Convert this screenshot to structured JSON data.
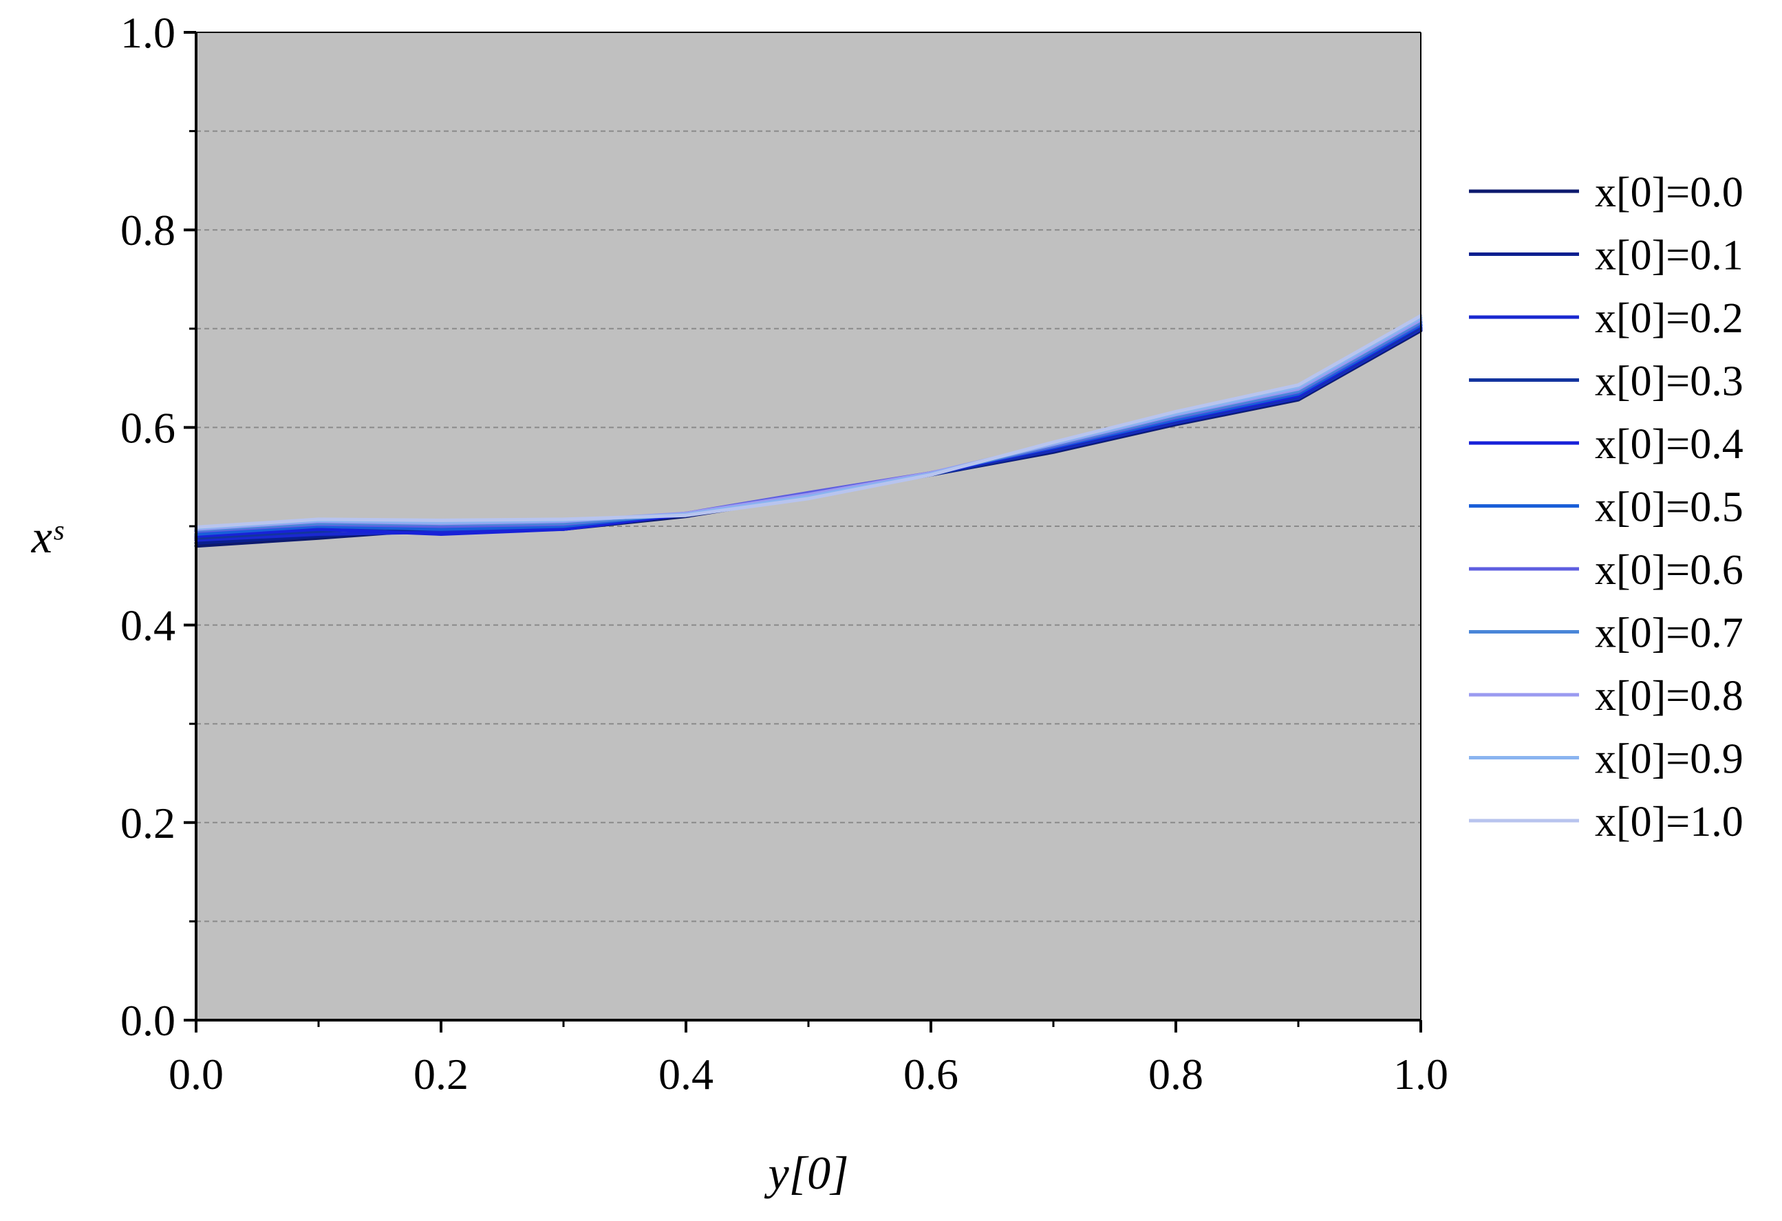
{
  "chart_data": {
    "type": "line",
    "title": "",
    "xlabel": "y[0]",
    "ylabel": "xˢ",
    "xlim": [
      0.0,
      1.0
    ],
    "ylim": [
      0.0,
      1.0
    ],
    "x_ticks": [
      "0.0",
      "0.2",
      "0.4",
      "0.6",
      "0.8",
      "1.0"
    ],
    "y_ticks": [
      "0.0",
      "0.2",
      "0.4",
      "0.6",
      "0.8",
      "1.0"
    ],
    "grid": "horizontal dashed",
    "legend_position": "right",
    "plot_background": "#c0c0c0",
    "x": [
      0.0,
      0.1,
      0.2,
      0.3,
      0.4,
      0.5,
      0.6,
      0.7,
      0.8,
      0.9,
      1.0
    ],
    "series": [
      {
        "name": "x[0]=0.0",
        "color": "#0d1a6e",
        "values": [
          0.48,
          0.488,
          0.497,
          0.497,
          0.51,
          0.53,
          0.552,
          0.575,
          0.603,
          0.628,
          0.698
        ]
      },
      {
        "name": "x[0]=0.1",
        "color": "#0a1f8f",
        "values": [
          0.483,
          0.49,
          0.498,
          0.5,
          0.511,
          0.531,
          0.552,
          0.576,
          0.604,
          0.629,
          0.699
        ]
      },
      {
        "name": "x[0]=0.2",
        "color": "#1a28d0",
        "values": [
          0.486,
          0.492,
          0.494,
          0.497,
          0.512,
          0.532,
          0.553,
          0.577,
          0.605,
          0.63,
          0.7
        ]
      },
      {
        "name": "x[0]=0.3",
        "color": "#13349e",
        "values": [
          0.488,
          0.495,
          0.5,
          0.505,
          0.511,
          0.53,
          0.552,
          0.578,
          0.606,
          0.631,
          0.701
        ]
      },
      {
        "name": "x[0]=0.4",
        "color": "#1822d8",
        "values": [
          0.49,
          0.497,
          0.492,
          0.497,
          0.512,
          0.533,
          0.553,
          0.579,
          0.607,
          0.632,
          0.703
        ]
      },
      {
        "name": "x[0]=0.5",
        "color": "#1a5fd8",
        "values": [
          0.492,
          0.5,
          0.497,
          0.5,
          0.513,
          0.532,
          0.554,
          0.58,
          0.608,
          0.634,
          0.704
        ]
      },
      {
        "name": "x[0]=0.6",
        "color": "#5e5ee0",
        "values": [
          0.495,
          0.502,
          0.5,
          0.502,
          0.513,
          0.534,
          0.554,
          0.581,
          0.61,
          0.636,
          0.706
        ]
      },
      {
        "name": "x[0]=0.7",
        "color": "#4a86d8",
        "values": [
          0.496,
          0.503,
          0.502,
          0.503,
          0.512,
          0.531,
          0.553,
          0.582,
          0.611,
          0.637,
          0.707
        ]
      },
      {
        "name": "x[0]=0.8",
        "color": "#9a9af0",
        "values": [
          0.497,
          0.505,
          0.503,
          0.505,
          0.513,
          0.532,
          0.554,
          0.583,
          0.613,
          0.639,
          0.709
        ]
      },
      {
        "name": "x[0]=0.9",
        "color": "#8ab4f0",
        "values": [
          0.498,
          0.506,
          0.504,
          0.506,
          0.512,
          0.53,
          0.553,
          0.584,
          0.614,
          0.641,
          0.711
        ]
      },
      {
        "name": "x[0]=1.0",
        "color": "#b8c4ee",
        "values": [
          0.499,
          0.507,
          0.506,
          0.507,
          0.511,
          0.528,
          0.552,
          0.585,
          0.616,
          0.643,
          0.713
        ]
      }
    ]
  }
}
